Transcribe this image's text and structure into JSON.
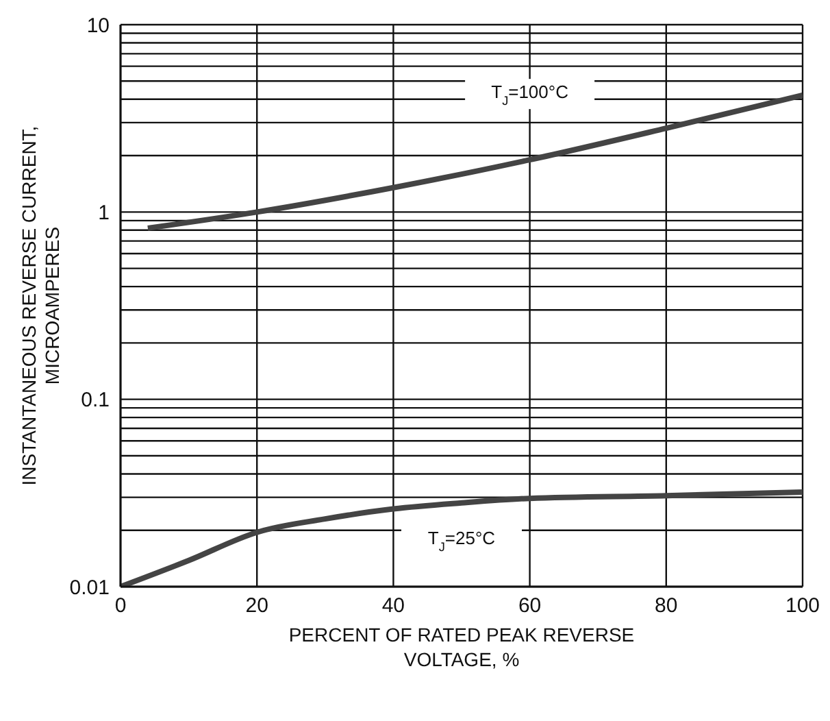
{
  "chart_data": {
    "type": "line",
    "xlabel": "PERCENT OF RATED PEAK REVERSE VOLTAGE, %",
    "ylabel": "INSTANTANEOUS REVERSE CURRENT, MICROAMPERES",
    "log": "y",
    "grid": true,
    "marker": "none",
    "line_style": "solid",
    "xlim": [
      0,
      100
    ],
    "xticks": [
      0,
      20,
      40,
      60,
      80,
      100
    ],
    "ylim": [
      0.01,
      10
    ],
    "yticks": [
      0.01,
      {
        "value": 0.02,
        "label": null
      },
      {
        "value": 0.03,
        "label": null
      },
      {
        "value": 0.04,
        "label": null
      },
      {
        "value": 0.05,
        "label": null
      },
      {
        "value": 0.06,
        "label": null
      },
      {
        "value": 0.07,
        "label": null
      },
      {
        "value": 0.08,
        "label": null
      },
      {
        "value": 0.09,
        "label": null
      },
      0.1,
      {
        "value": 0.2,
        "label": null
      },
      {
        "value": 0.3,
        "label": null
      },
      {
        "value": 0.4,
        "label": null
      },
      {
        "value": 0.5,
        "label": null
      },
      {
        "value": 0.6,
        "label": null
      },
      {
        "value": 0.7,
        "label": null
      },
      {
        "value": 0.8,
        "label": null
      },
      {
        "value": 0.9,
        "label": null
      },
      1,
      {
        "value": 2,
        "label": null
      },
      {
        "value": 3,
        "label": null
      },
      {
        "value": 4,
        "label": null
      },
      {
        "value": 5,
        "label": null
      },
      {
        "value": 6,
        "label": null
      },
      {
        "value": 7,
        "label": null
      },
      {
        "value": 8,
        "label": null
      },
      {
        "value": 9,
        "label": null
      },
      10
    ],
    "series": [
      {
        "name": "T$_{J}$=100°C",
        "color": "#444444",
        "x": [
          4,
          20,
          40,
          60,
          80,
          100
        ],
        "values": [
          0.82,
          1.0,
          1.35,
          1.9,
          2.8,
          4.2
        ]
      },
      {
        "name": "T$_{J}$=25°C",
        "color": "#444444",
        "x": [
          0,
          10,
          20,
          30,
          40,
          50,
          60,
          80,
          100
        ],
        "values": [
          0.01,
          0.0138,
          0.0195,
          0.023,
          0.026,
          0.028,
          0.0296,
          0.0306,
          0.032
        ]
      }
    ]
  }
}
